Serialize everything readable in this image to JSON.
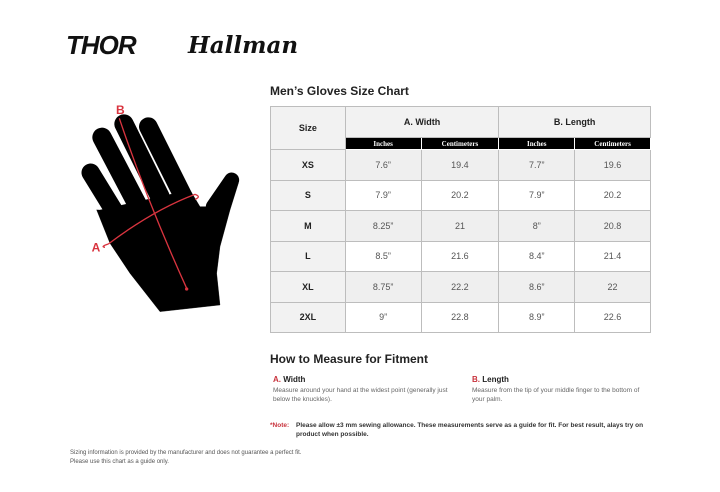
{
  "brands": {
    "primary": "THOR",
    "secondary": "Hallman"
  },
  "title": "Men’s Gloves Size Chart",
  "table": {
    "size_header": "Size",
    "groups": [
      "A. Width",
      "B. Length"
    ],
    "units": [
      "Inches",
      "Centimeters",
      "Inches",
      "Centimeters"
    ],
    "rows": [
      [
        "XS",
        "7.6”",
        "19.4",
        "7.7”",
        "19.6"
      ],
      [
        "S",
        "7.9”",
        "20.2",
        "7.9”",
        "20.2"
      ],
      [
        "M",
        "8.25”",
        "21",
        "8”",
        "20.8"
      ],
      [
        "L",
        "8.5”",
        "21.6",
        "8.4”",
        "21.4"
      ],
      [
        "XL",
        "8.75”",
        "22.2",
        "8.6”",
        "22"
      ],
      [
        "2XL",
        "9”",
        "22.8",
        "8.9”",
        "22.6"
      ]
    ]
  },
  "diagram": {
    "label_a": "A",
    "label_b": "B"
  },
  "measure": {
    "heading": "How to Measure for Fitment",
    "a": {
      "letter": "A.",
      "name": "Width",
      "desc": "Measure around your hand at the widest point (generally just below the knuckles)."
    },
    "b": {
      "letter": "B.",
      "name": "Length",
      "desc": "Measure from the tip of your middle finger to the bottom of your palm."
    }
  },
  "note": {
    "label": "*Note:",
    "text": "Please allow ±3 mm sewing allowance. These measurements serve as a guide for fit. For best result, alays try on product when possible."
  },
  "footer": [
    "Sizing information is provided by the manufacturer and does not guarantee a perfect fit.",
    "Please use this chart as a guide only."
  ],
  "colors": {
    "accent": "#c8323c",
    "header_bg": "#000000"
  }
}
